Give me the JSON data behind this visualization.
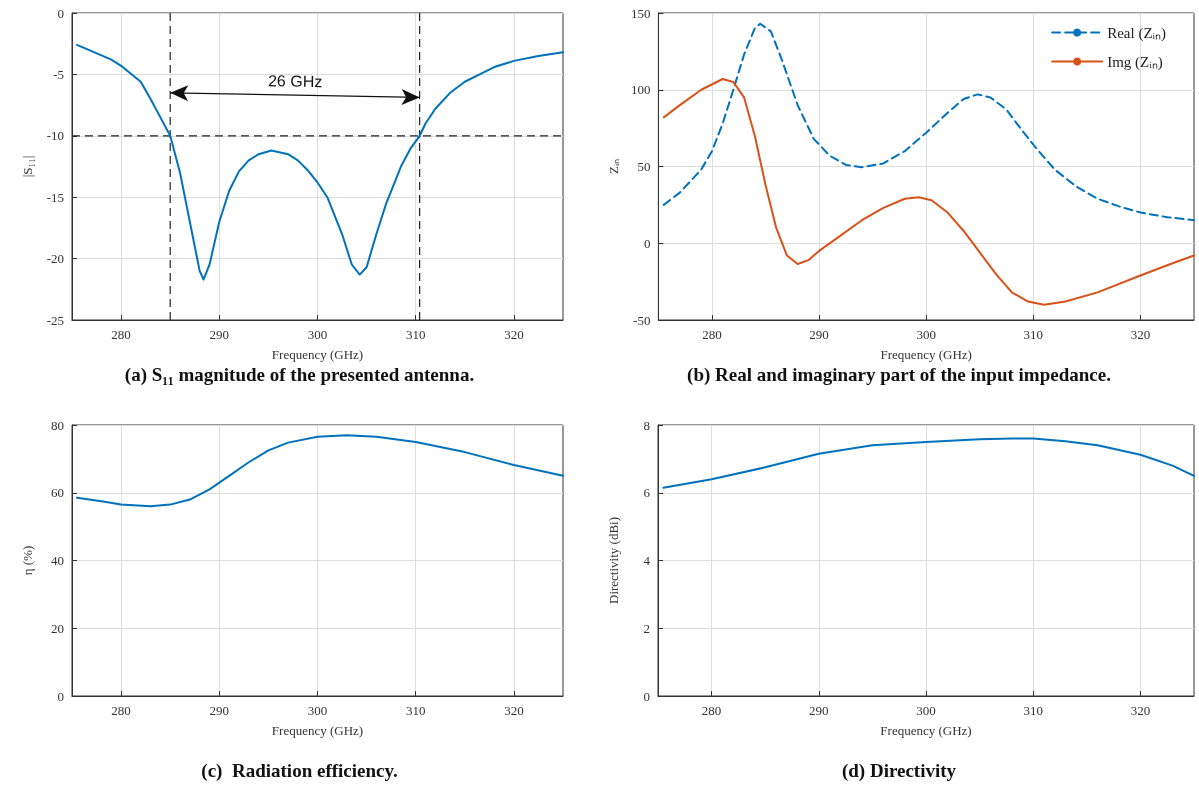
{
  "chart_data": [
    {
      "type": "line",
      "title": "(a) S₁₁ magnitude of the presented antenna.",
      "xlabel": "Frequency (GHz)",
      "ylabel": "|S₁₁|",
      "xlim": [
        275,
        325
      ],
      "xticks": [
        280,
        290,
        300,
        310,
        320
      ],
      "ylim": [
        -25,
        0
      ],
      "yticks": [
        -25,
        -20,
        -15,
        -10,
        -5,
        0
      ],
      "grid": true,
      "marker": "none",
      "legend": false,
      "annotations": [
        "26 GHz"
      ],
      "ref_lines": [
        {
          "axis": "x",
          "value": 285,
          "color": "#222222",
          "line_style": "dashed"
        },
        {
          "axis": "x",
          "value": 310.4,
          "color": "#222222",
          "line_style": "dashed"
        },
        {
          "axis": "y",
          "value": -10,
          "color": "#222222",
          "line_style": "dashed"
        }
      ],
      "series": [
        {
          "color": "#0072bd",
          "line_style": "solid",
          "x": [
            275.5,
            277,
            279,
            280,
            282,
            283,
            284,
            285,
            286,
            287,
            288,
            288.4,
            289,
            290,
            291,
            292,
            293,
            294,
            295.3,
            297,
            298,
            299,
            300,
            301,
            302,
            302.5,
            303.5,
            304.3,
            305,
            306,
            307,
            308,
            308.5,
            309.5,
            310.4,
            311,
            312,
            313.5,
            315,
            316.5,
            318,
            320,
            322.5,
            325
          ],
          "values": [
            -2.6,
            -3.1,
            -3.8,
            -4.3,
            -5.6,
            -7,
            -8.5,
            -10,
            -13,
            -17,
            -21,
            -21.7,
            -20.5,
            -17,
            -14.5,
            -12.9,
            -12,
            -11.5,
            -11.2,
            -11.5,
            -12,
            -12.8,
            -13.8,
            -15,
            -17,
            -18,
            -20.5,
            -21.3,
            -20.7,
            -18,
            -15.5,
            -13.5,
            -12.5,
            -11,
            -10,
            -9,
            -7.8,
            -6.5,
            -5.6,
            -5,
            -4.4,
            -3.9,
            -3.5,
            -3.2
          ]
        }
      ]
    },
    {
      "type": "line",
      "title": "(b) Real and imaginary part of the input impedance.",
      "xlabel": "Frequency (GHz)",
      "ylabel": "Zᵢₙ",
      "xlim": [
        275,
        325
      ],
      "xticks": [
        280,
        290,
        300,
        310,
        320
      ],
      "ylim": [
        -50,
        150
      ],
      "yticks": [
        -50,
        0,
        50,
        100,
        150
      ],
      "grid": true,
      "marker": "none",
      "legend": "top right",
      "series": [
        {
          "name": "Real (Zᵢₙ)",
          "color": "#0072bd",
          "line_style": "dashed",
          "x": [
            275.5,
            277,
            279,
            280,
            281,
            282,
            283,
            284,
            284.5,
            285.5,
            286.5,
            288,
            289.5,
            291,
            292.5,
            294,
            296,
            298,
            300,
            302,
            303.5,
            304.8,
            306,
            307.5,
            309,
            310.5,
            312,
            314,
            316,
            318,
            320,
            322.5,
            325
          ],
          "values": [
            25,
            33,
            48,
            60,
            78,
            100,
            123,
            140,
            143,
            138,
            120,
            90,
            68,
            57,
            51,
            49.5,
            52,
            60,
            72,
            85,
            94,
            97,
            95,
            87,
            73,
            60,
            48,
            37,
            29,
            24,
            20,
            17,
            15
          ]
        },
        {
          "name": "Img (Zᵢₙ)",
          "color": "#d95319",
          "line_style": "solid",
          "x": [
            275.5,
            277,
            279,
            281,
            282,
            283,
            284,
            285,
            286,
            287,
            288,
            289,
            290,
            292,
            294,
            296,
            298,
            299.3,
            300.5,
            302,
            303.5,
            305,
            306.5,
            308,
            309.5,
            311,
            313,
            316,
            320,
            323,
            325
          ],
          "values": [
            82,
            90,
            100,
            107,
            105,
            95,
            70,
            38,
            10,
            -8,
            -13.5,
            -11,
            -5,
            5,
            15,
            23,
            29,
            30,
            28,
            20,
            8,
            -6,
            -20,
            -32,
            -38,
            -40,
            -38,
            -32,
            -21,
            -13,
            -8
          ]
        }
      ]
    },
    {
      "type": "line",
      "title": "(c)  Radiation efficiency.",
      "xlabel": "Frequency (GHz)",
      "ylabel": "η (%)",
      "xlim": [
        275,
        325
      ],
      "xticks": [
        280,
        290,
        300,
        310,
        320
      ],
      "ylim": [
        0,
        80
      ],
      "yticks": [
        0,
        20,
        40,
        60,
        80
      ],
      "grid": true,
      "marker": "none",
      "legend": false,
      "series": [
        {
          "color": "#0072bd",
          "line_style": "solid",
          "x": [
            275.5,
            278,
            280,
            283,
            285,
            287,
            289,
            291,
            293,
            295,
            297,
            300,
            303,
            306,
            310,
            315,
            320,
            325
          ],
          "values": [
            58.5,
            57.5,
            56.5,
            56,
            56.5,
            58,
            61,
            65,
            69,
            72.5,
            74.8,
            76.5,
            77,
            76.5,
            75,
            72,
            68.2,
            65
          ]
        }
      ]
    },
    {
      "type": "line",
      "title": "(d) Directivity",
      "xlabel": "Frequency (GHz)",
      "ylabel": "Directivity (dBi)",
      "xlim": [
        275,
        325
      ],
      "xticks": [
        280,
        290,
        300,
        310,
        320
      ],
      "ylim": [
        0,
        8
      ],
      "yticks": [
        0,
        2,
        4,
        6,
        8
      ],
      "grid": true,
      "marker": "none",
      "legend": false,
      "series": [
        {
          "color": "#0072bd",
          "line_style": "solid",
          "x": [
            275.5,
            280,
            285,
            290,
            295,
            300,
            305,
            308,
            310,
            313,
            316,
            320,
            323,
            325
          ],
          "values": [
            6.15,
            6.4,
            6.75,
            7.15,
            7.4,
            7.5,
            7.58,
            7.6,
            7.6,
            7.52,
            7.4,
            7.12,
            6.8,
            6.5
          ]
        }
      ]
    }
  ]
}
